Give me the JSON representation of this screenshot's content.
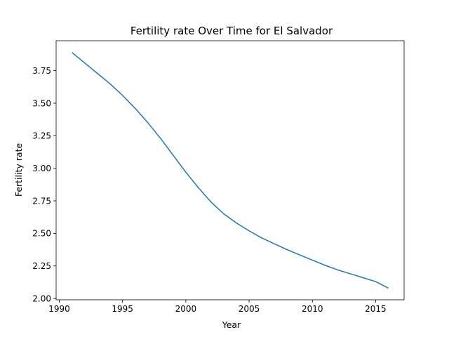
{
  "chart_data": {
    "type": "line",
    "title": "Fertility rate Over Time for El Salvador",
    "xlabel": "Year",
    "ylabel": "Fertility rate",
    "xlim": [
      1989.75,
      2017.25
    ],
    "ylim": [
      1.99,
      3.98
    ],
    "xticks": [
      1990,
      1995,
      2000,
      2005,
      2010,
      2015
    ],
    "yticks": [
      2.0,
      2.25,
      2.5,
      2.75,
      3.0,
      3.25,
      3.5,
      3.75
    ],
    "xtick_labels": [
      "1990",
      "1995",
      "2000",
      "2005",
      "2010",
      "2015"
    ],
    "ytick_labels": [
      "2.00",
      "2.25",
      "2.50",
      "2.75",
      "3.00",
      "3.25",
      "3.50",
      "3.75"
    ],
    "grid": false,
    "line_color": "#1f77b4",
    "series": [
      {
        "x": [
          1991,
          1992,
          1993,
          1994,
          1995,
          1996,
          1997,
          1998,
          1999,
          2000,
          2001,
          2002,
          2003,
          2004,
          2005,
          2006,
          2007,
          2008,
          2009,
          2010,
          2011,
          2012,
          2013,
          2014,
          2015,
          2016
        ],
        "values": [
          3.89,
          3.81,
          3.73,
          3.65,
          3.56,
          3.46,
          3.35,
          3.23,
          3.1,
          2.97,
          2.85,
          2.74,
          2.65,
          2.58,
          2.52,
          2.465,
          2.42,
          2.375,
          2.335,
          2.295,
          2.255,
          2.22,
          2.19,
          2.16,
          2.13,
          2.08
        ]
      }
    ]
  }
}
